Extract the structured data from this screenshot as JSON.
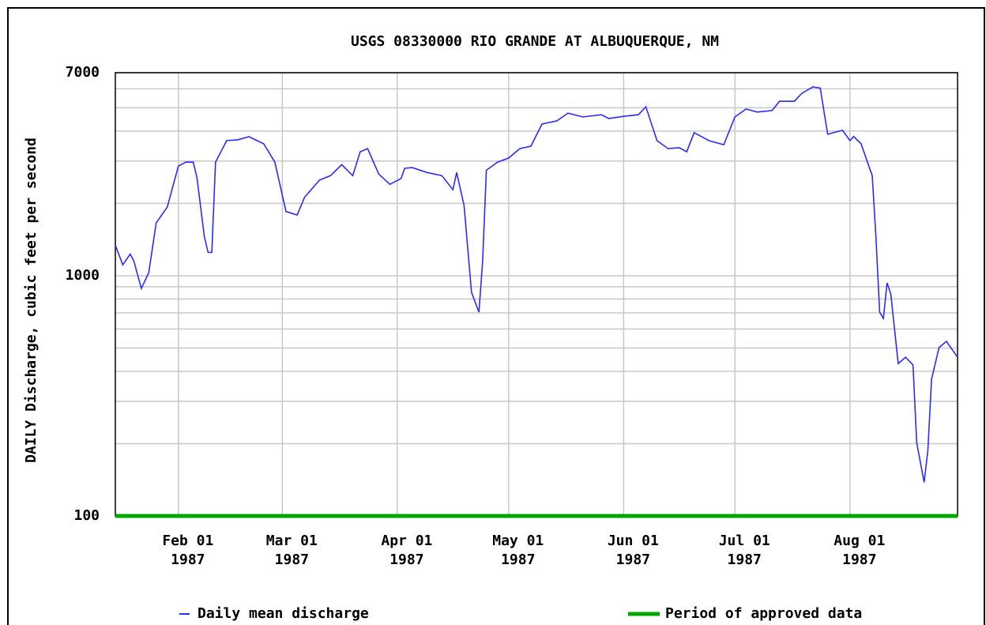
{
  "chart_data": {
    "type": "line",
    "title": "USGS 08330000 RIO GRANDE AT ALBUQUERQUE, NM",
    "y_label": "DAILY Discharge, cubic feet per second",
    "log_y": true,
    "grid": true,
    "legend": "bottom",
    "xlim": [
      "1987-01-15",
      "1987-08-30"
    ],
    "xticks": [
      {
        "value": "1987-02-01",
        "label": [
          "Feb 01",
          "1987"
        ]
      },
      {
        "value": "1987-03-01",
        "label": [
          "Mar 01",
          "1987"
        ]
      },
      {
        "value": "1987-04-01",
        "label": [
          "Apr 01",
          "1987"
        ]
      },
      {
        "value": "1987-05-01",
        "label": [
          "May 01",
          "1987"
        ]
      },
      {
        "value": "1987-06-01",
        "label": [
          "Jun 01",
          "1987"
        ]
      },
      {
        "value": "1987-07-01",
        "label": [
          "Jul 01",
          "1987"
        ]
      },
      {
        "value": "1987-08-01",
        "label": [
          "Aug 01",
          "1987"
        ]
      }
    ],
    "ylim": [
      100,
      7000
    ],
    "yticks": [
      100,
      1000,
      7000
    ],
    "yminor": [
      200,
      300,
      400,
      500,
      600,
      700,
      800,
      900,
      2000,
      3000,
      4000,
      5000,
      6000
    ],
    "series": [
      {
        "name": "Daily mean discharge",
        "color": "#2b2bff",
        "x": [
          "1987-01-15",
          "1987-01-17",
          "1987-01-19",
          "1987-01-20",
          "1987-01-22",
          "1987-01-24",
          "1987-01-26",
          "1987-01-29",
          "1987-02-01",
          "1987-02-03",
          "1987-02-05",
          "1987-02-06",
          "1987-02-08",
          "1987-02-09",
          "1987-02-10",
          "1987-02-11",
          "1987-02-14",
          "1987-02-17",
          "1987-02-20",
          "1987-02-24",
          "1987-02-27",
          "1987-03-02",
          "1987-03-05",
          "1987-03-07",
          "1987-03-11",
          "1987-03-14",
          "1987-03-17",
          "1987-03-20",
          "1987-03-22",
          "1987-03-24",
          "1987-03-27",
          "1987-03-30",
          "1987-04-02",
          "1987-04-03",
          "1987-04-05",
          "1987-04-09",
          "1987-04-13",
          "1987-04-16",
          "1987-04-17",
          "1987-04-19",
          "1987-04-21",
          "1987-04-23",
          "1987-04-24",
          "1987-04-25",
          "1987-04-28",
          "1987-05-01",
          "1987-05-04",
          "1987-05-07",
          "1987-05-10",
          "1987-05-14",
          "1987-05-17",
          "1987-05-21",
          "1987-05-26",
          "1987-05-28",
          "1987-06-01",
          "1987-06-05",
          "1987-06-07",
          "1987-06-10",
          "1987-06-13",
          "1987-06-16",
          "1987-06-18",
          "1987-06-20",
          "1987-06-24",
          "1987-06-28",
          "1987-07-01",
          "1987-07-04",
          "1987-07-07",
          "1987-07-11",
          "1987-07-13",
          "1987-07-17",
          "1987-07-19",
          "1987-07-22",
          "1987-07-24",
          "1987-07-26",
          "1987-07-30",
          "1987-08-01",
          "1987-08-02",
          "1987-08-04",
          "1987-08-07",
          "1987-08-08",
          "1987-08-09",
          "1987-08-10",
          "1987-08-11",
          "1987-08-12",
          "1987-08-14",
          "1987-08-16",
          "1987-08-18",
          "1987-08-19",
          "1987-08-21",
          "1987-08-22",
          "1987-08-23",
          "1987-08-25",
          "1987-08-27",
          "1987-08-30"
        ],
        "values": [
          1340,
          1110,
          1230,
          1150,
          885,
          1030,
          1660,
          1930,
          2860,
          2970,
          2970,
          2560,
          1450,
          1250,
          1250,
          2970,
          3650,
          3680,
          3790,
          3540,
          2970,
          1850,
          1790,
          2120,
          2500,
          2610,
          2900,
          2610,
          3280,
          3380,
          2650,
          2400,
          2540,
          2800,
          2820,
          2690,
          2610,
          2280,
          2690,
          1960,
          853,
          705,
          1150,
          2750,
          2970,
          3090,
          3380,
          3460,
          4280,
          4410,
          4750,
          4580,
          4680,
          4510,
          4610,
          4680,
          5050,
          3650,
          3380,
          3410,
          3280,
          3940,
          3650,
          3510,
          4580,
          4940,
          4800,
          4870,
          5320,
          5320,
          5740,
          6110,
          6040,
          3880,
          4030,
          3650,
          3800,
          3540,
          2610,
          1450,
          705,
          664,
          934,
          840,
          431,
          458,
          425,
          202,
          138,
          187,
          371,
          502,
          533,
          458
        ]
      },
      {
        "name": "Period of approved data",
        "color": "#00a800",
        "x": [
          "1987-01-15",
          "1987-08-30"
        ],
        "values": [
          100,
          100
        ]
      }
    ]
  }
}
